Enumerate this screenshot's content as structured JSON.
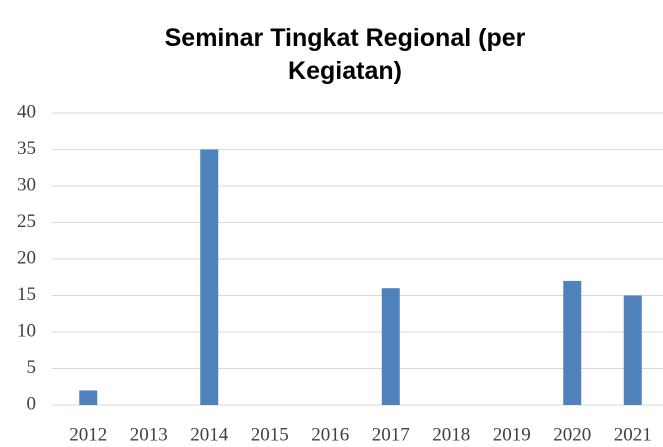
{
  "chart_data": {
    "type": "bar",
    "title": "Seminar Tingkat Regional (per Kegiatan)",
    "categories": [
      "2012",
      "2013",
      "2014",
      "2015",
      "2016",
      "2017",
      "2018",
      "2019",
      "2020",
      "2021"
    ],
    "values": [
      2,
      0,
      35,
      0,
      0,
      16,
      0,
      0,
      17,
      15
    ],
    "color": "#4f81bd",
    "ylim": [
      0,
      40
    ],
    "yticks": [
      0,
      5,
      10,
      15,
      20,
      25,
      30,
      35,
      40
    ],
    "grid": true
  }
}
